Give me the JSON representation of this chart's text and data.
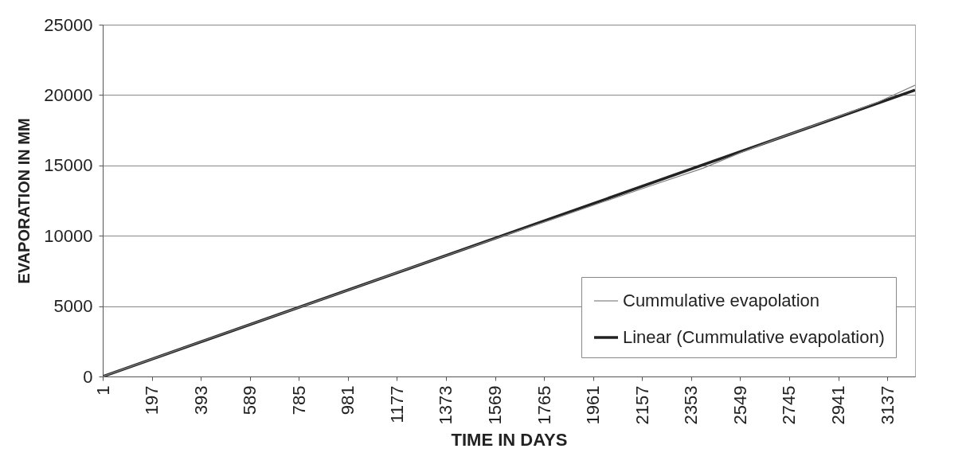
{
  "chart_data": {
    "type": "line",
    "xlabel": "TIME IN DAYS",
    "ylabel": "EVAPORATION IN MM",
    "xlim": [
      1,
      3248
    ],
    "xticks": [
      1,
      197,
      393,
      589,
      785,
      981,
      1177,
      1373,
      1569,
      1765,
      1961,
      2157,
      2353,
      2549,
      2745,
      2941,
      3137
    ],
    "ylim": [
      0,
      25000
    ],
    "yticks": [
      0,
      5000,
      10000,
      15000,
      20000,
      25000
    ],
    "grid": "y",
    "legend": "bottom right",
    "series": [
      {
        "name": "Cummulative evapolation",
        "color": "#808080",
        "x": [
          1,
          200,
          400,
          600,
          800,
          1000,
          1200,
          1400,
          1600,
          1800,
          2000,
          2200,
          2400,
          2550,
          2700,
          2900,
          3100,
          3248
        ],
        "values": [
          0,
          1250,
          2520,
          3760,
          5000,
          6250,
          7530,
          8750,
          9980,
          11180,
          12400,
          13600,
          14800,
          15900,
          16920,
          18200,
          19500,
          20700
        ]
      },
      {
        "name": "Linear (Cummulative evapolation)",
        "color": "#222222",
        "x": [
          1,
          3248
        ],
        "values": [
          0,
          20350
        ]
      }
    ]
  }
}
